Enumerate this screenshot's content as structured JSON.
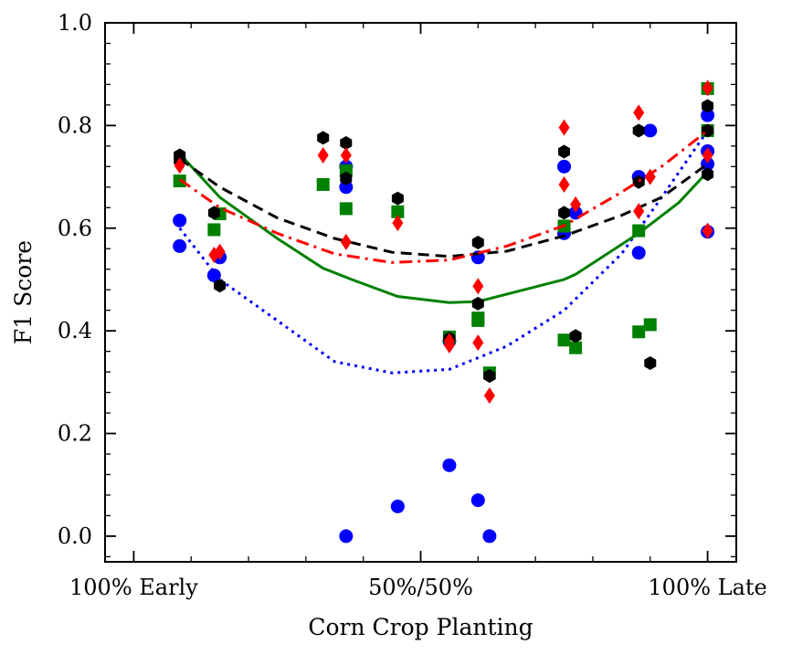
{
  "chart_data": {
    "type": "scatter",
    "title": "",
    "xlabel": "Corn Crop Planting",
    "ylabel": "F1 Score",
    "xlim": [
      -0.05,
      1.05
    ],
    "ylim": [
      -0.05,
      1.0
    ],
    "grid": false,
    "x_ticks": [
      {
        "value": 0.0,
        "label": "100% Early"
      },
      {
        "value": 0.5,
        "label": "50%/50%"
      },
      {
        "value": 1.0,
        "label": "100% Late"
      }
    ],
    "y_ticks": [
      {
        "value": 0.0,
        "label": "0.0"
      },
      {
        "value": 0.2,
        "label": "0.2"
      },
      {
        "value": 0.4,
        "label": "0.4"
      },
      {
        "value": 0.6,
        "label": "0.6"
      },
      {
        "value": 0.8,
        "label": "0.8"
      },
      {
        "value": 1.0,
        "label": "1.0"
      }
    ],
    "series": [
      {
        "name": "blue",
        "color": "#0000ff",
        "marker": "circle",
        "line_style": "dotted",
        "points": [
          [
            0.08,
            0.615
          ],
          [
            0.08,
            0.565
          ],
          [
            0.14,
            0.508
          ],
          [
            0.15,
            0.543
          ],
          [
            0.37,
            0.72
          ],
          [
            0.37,
            0.0
          ],
          [
            0.37,
            0.68
          ],
          [
            0.46,
            0.058
          ],
          [
            0.55,
            0.138
          ],
          [
            0.55,
            0.38
          ],
          [
            0.6,
            0.07
          ],
          [
            0.6,
            0.543
          ],
          [
            0.62,
            0.0
          ],
          [
            0.75,
            0.72
          ],
          [
            0.75,
            0.59
          ],
          [
            0.77,
            0.63
          ],
          [
            0.88,
            0.552
          ],
          [
            0.88,
            0.7
          ],
          [
            0.9,
            0.79
          ],
          [
            1.0,
            0.82
          ],
          [
            1.0,
            0.75
          ],
          [
            1.0,
            0.725
          ],
          [
            1.0,
            0.593
          ]
        ],
        "trend": [
          [
            0.08,
            0.6
          ],
          [
            0.15,
            0.5
          ],
          [
            0.25,
            0.42
          ],
          [
            0.35,
            0.34
          ],
          [
            0.45,
            0.318
          ],
          [
            0.55,
            0.325
          ],
          [
            0.65,
            0.37
          ],
          [
            0.75,
            0.44
          ],
          [
            0.85,
            0.55
          ],
          [
            0.92,
            0.66
          ],
          [
            1.0,
            0.79
          ]
        ]
      },
      {
        "name": "green",
        "color": "#008000",
        "marker": "square",
        "line_style": "solid",
        "points": [
          [
            0.08,
            0.692
          ],
          [
            0.14,
            0.597
          ],
          [
            0.15,
            0.628
          ],
          [
            0.33,
            0.685
          ],
          [
            0.37,
            0.712
          ],
          [
            0.37,
            0.638
          ],
          [
            0.46,
            0.632
          ],
          [
            0.55,
            0.388
          ],
          [
            0.6,
            0.425
          ],
          [
            0.6,
            0.42
          ],
          [
            0.62,
            0.318
          ],
          [
            0.75,
            0.604
          ],
          [
            0.75,
            0.382
          ],
          [
            0.77,
            0.367
          ],
          [
            0.88,
            0.398
          ],
          [
            0.9,
            0.412
          ],
          [
            0.88,
            0.595
          ],
          [
            1.0,
            0.872
          ],
          [
            1.0,
            0.79
          ]
        ],
        "trend": [
          [
            0.08,
            0.745
          ],
          [
            0.15,
            0.66
          ],
          [
            0.25,
            0.58
          ],
          [
            0.33,
            0.522
          ],
          [
            0.38,
            0.5
          ],
          [
            0.46,
            0.467
          ],
          [
            0.55,
            0.455
          ],
          [
            0.6,
            0.457
          ],
          [
            0.68,
            0.48
          ],
          [
            0.75,
            0.5
          ],
          [
            0.77,
            0.51
          ],
          [
            0.88,
            0.59
          ],
          [
            0.95,
            0.65
          ],
          [
            1.0,
            0.71
          ]
        ]
      },
      {
        "name": "black",
        "color": "#000000",
        "marker": "hexagon",
        "line_style": "dashed",
        "points": [
          [
            0.08,
            0.742
          ],
          [
            0.08,
            0.732
          ],
          [
            0.14,
            0.63
          ],
          [
            0.15,
            0.488
          ],
          [
            0.33,
            0.776
          ],
          [
            0.37,
            0.766
          ],
          [
            0.37,
            0.697
          ],
          [
            0.46,
            0.658
          ],
          [
            0.55,
            0.385
          ],
          [
            0.6,
            0.572
          ],
          [
            0.6,
            0.453
          ],
          [
            0.62,
            0.312
          ],
          [
            0.75,
            0.749
          ],
          [
            0.75,
            0.63
          ],
          [
            0.77,
            0.39
          ],
          [
            0.88,
            0.79
          ],
          [
            0.88,
            0.69
          ],
          [
            0.9,
            0.337
          ],
          [
            1.0,
            0.838
          ],
          [
            1.0,
            0.79
          ],
          [
            1.0,
            0.705
          ]
        ],
        "trend": [
          [
            0.08,
            0.735
          ],
          [
            0.15,
            0.68
          ],
          [
            0.25,
            0.62
          ],
          [
            0.35,
            0.58
          ],
          [
            0.45,
            0.553
          ],
          [
            0.55,
            0.545
          ],
          [
            0.65,
            0.555
          ],
          [
            0.75,
            0.585
          ],
          [
            0.85,
            0.625
          ],
          [
            0.92,
            0.66
          ],
          [
            1.0,
            0.725
          ]
        ]
      },
      {
        "name": "red",
        "color": "#ff0000",
        "marker": "diamond",
        "line_style": "dashdot",
        "points": [
          [
            0.08,
            0.722
          ],
          [
            0.14,
            0.548
          ],
          [
            0.15,
            0.554
          ],
          [
            0.33,
            0.742
          ],
          [
            0.37,
            0.742
          ],
          [
            0.37,
            0.573
          ],
          [
            0.46,
            0.61
          ],
          [
            0.55,
            0.372
          ],
          [
            0.55,
            0.38
          ],
          [
            0.6,
            0.487
          ],
          [
            0.6,
            0.377
          ],
          [
            0.62,
            0.274
          ],
          [
            0.75,
            0.796
          ],
          [
            0.75,
            0.685
          ],
          [
            0.77,
            0.646
          ],
          [
            0.88,
            0.825
          ],
          [
            0.88,
            0.633
          ],
          [
            0.9,
            0.7
          ],
          [
            1.0,
            0.873
          ],
          [
            1.0,
            0.742
          ],
          [
            1.0,
            0.595
          ]
        ],
        "trend": [
          [
            0.08,
            0.695
          ],
          [
            0.15,
            0.64
          ],
          [
            0.25,
            0.59
          ],
          [
            0.35,
            0.55
          ],
          [
            0.45,
            0.533
          ],
          [
            0.55,
            0.538
          ],
          [
            0.65,
            0.565
          ],
          [
            0.75,
            0.605
          ],
          [
            0.85,
            0.67
          ],
          [
            0.92,
            0.72
          ],
          [
            1.0,
            0.79
          ]
        ]
      }
    ]
  }
}
